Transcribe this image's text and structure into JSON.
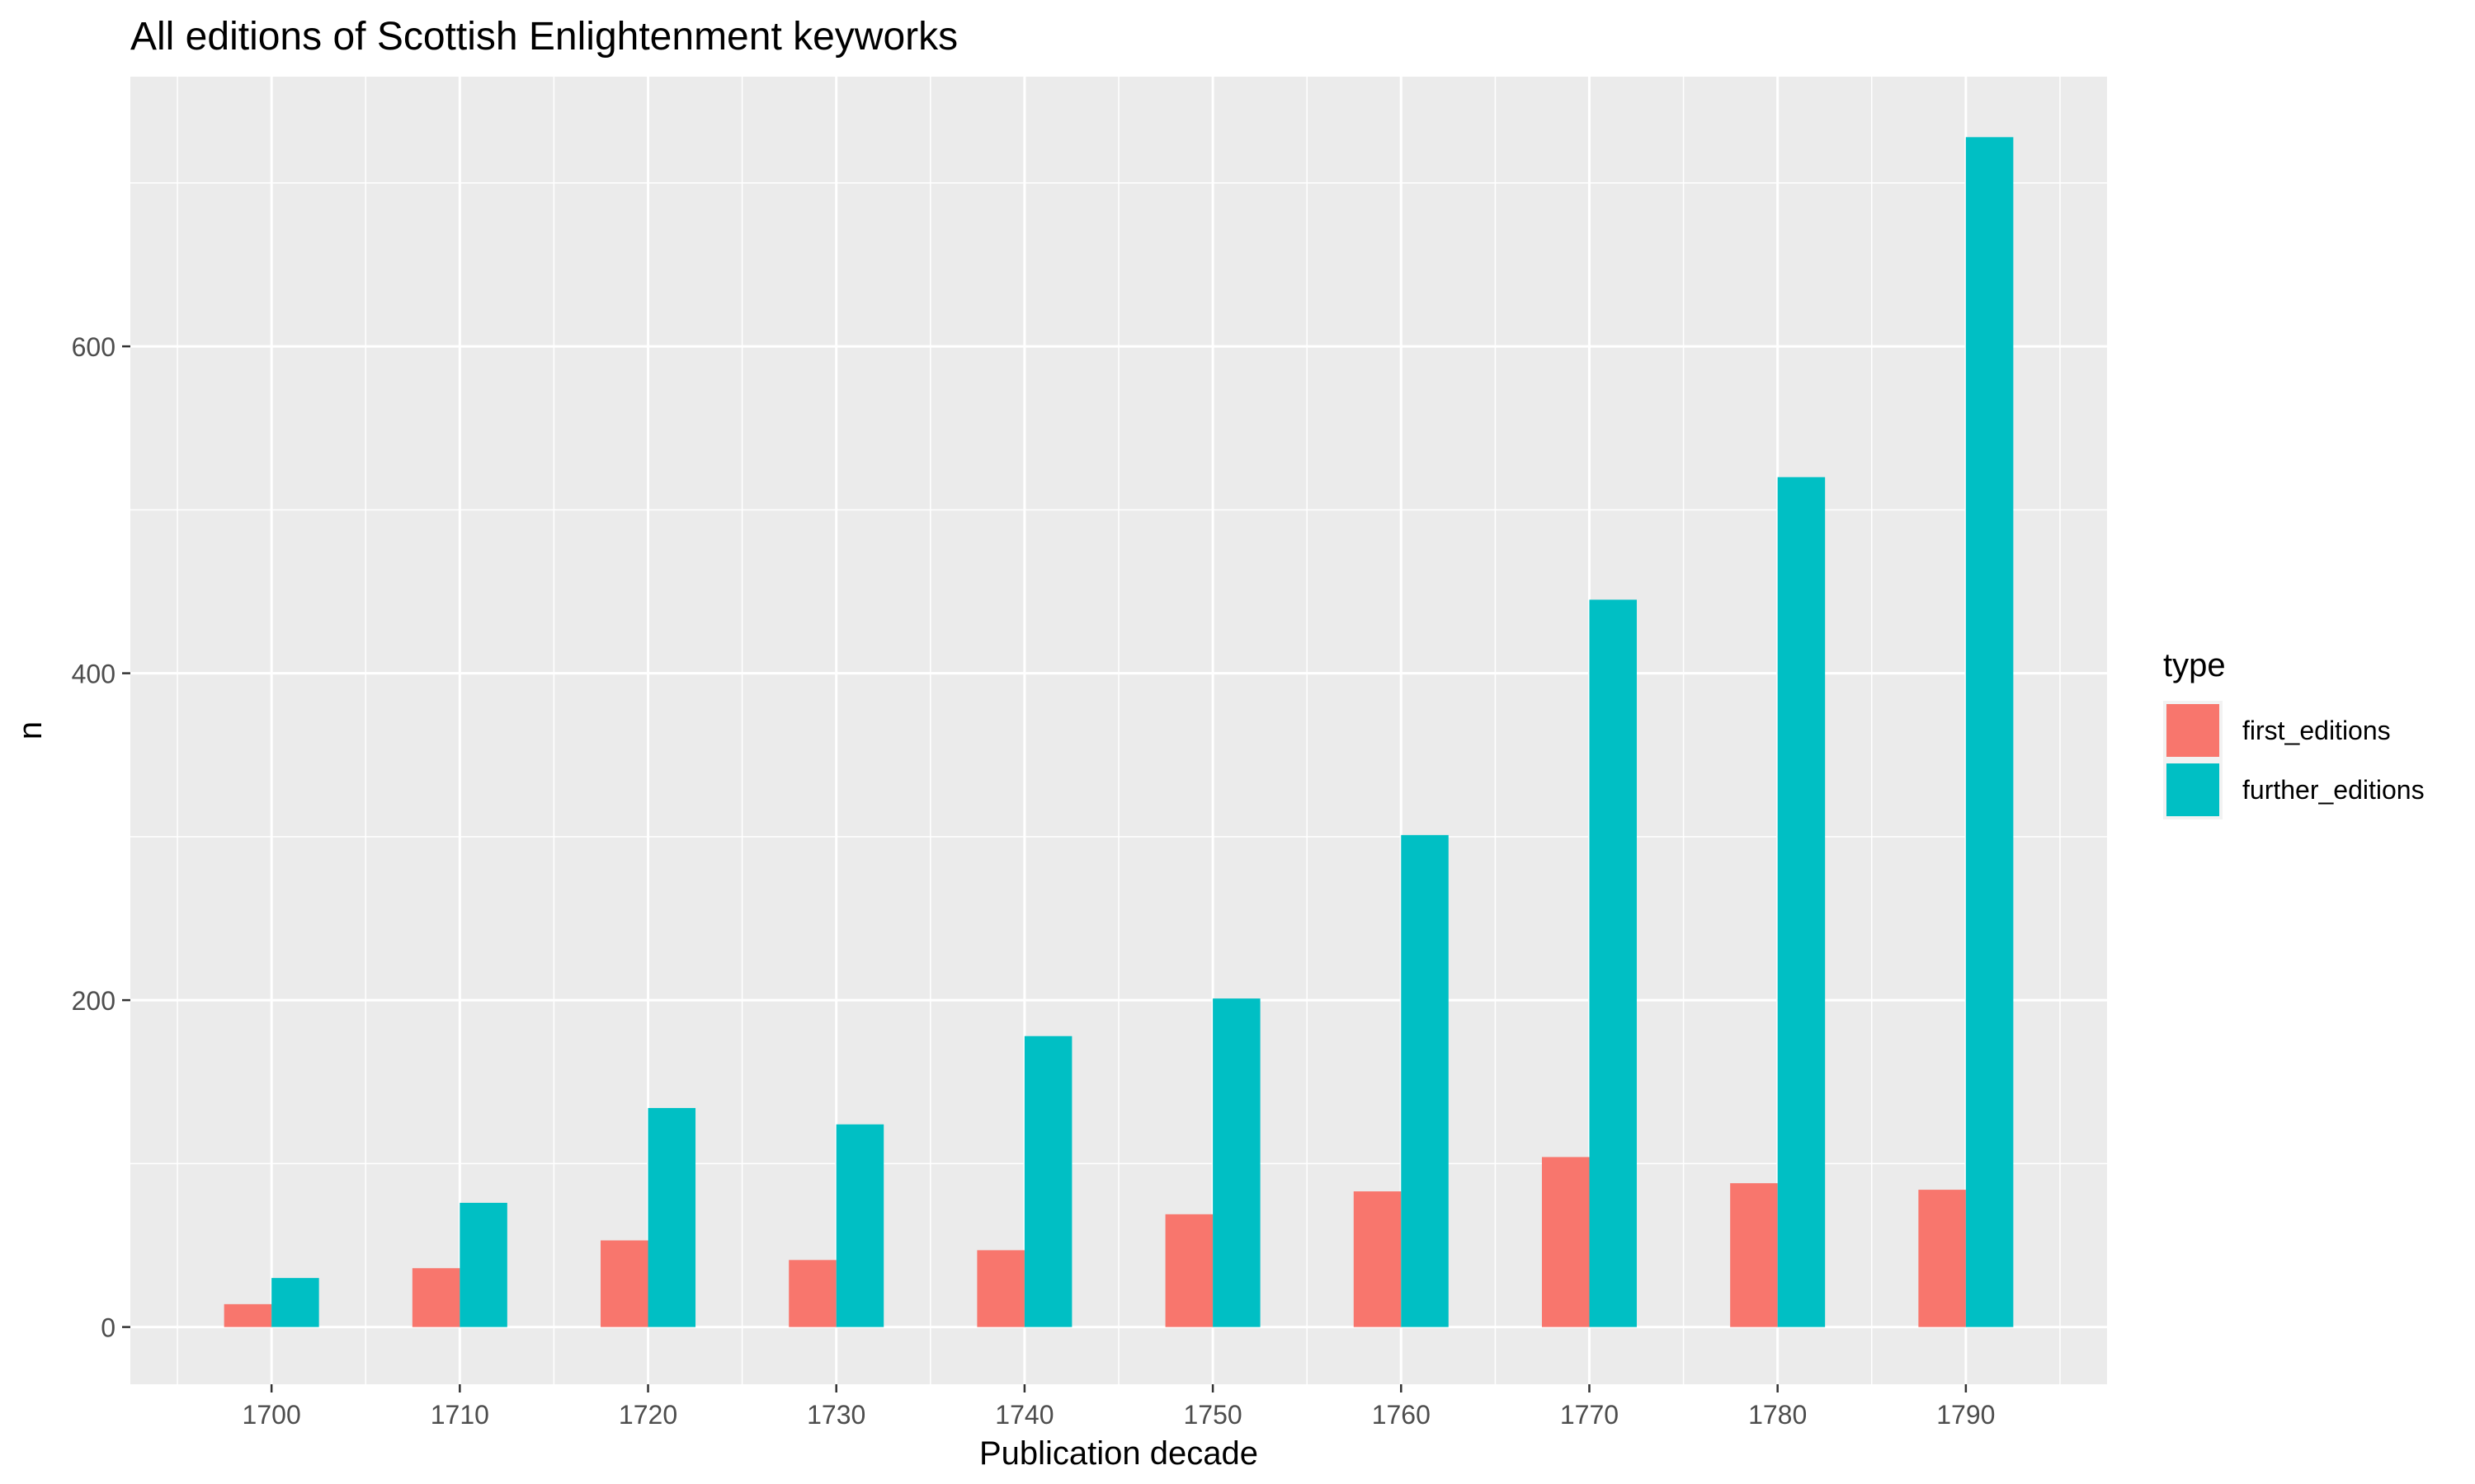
{
  "chart_data": {
    "type": "bar",
    "title": "All editions of Scottish Enlightenment keyworks",
    "xlabel": "Publication decade",
    "ylabel": "n",
    "categories": [
      "1700",
      "1710",
      "1720",
      "1730",
      "1740",
      "1750",
      "1760",
      "1770",
      "1780",
      "1790"
    ],
    "series": [
      {
        "name": "first_editions",
        "color": "#F8766D",
        "values": [
          14,
          36,
          53,
          41,
          47,
          69,
          83,
          104,
          88,
          84
        ]
      },
      {
        "name": "further_editions",
        "color": "#00BFC4",
        "values": [
          30,
          76,
          134,
          124,
          178,
          201,
          301,
          445,
          520,
          728
        ]
      }
    ],
    "yticks": [
      0,
      200,
      400,
      600
    ],
    "ylim": [
      -35,
      765
    ],
    "grid": true,
    "legend": {
      "title": "type",
      "position": "right"
    },
    "colors": {
      "panel_background": "#EBEBEB",
      "grid": "#FFFFFF"
    }
  }
}
